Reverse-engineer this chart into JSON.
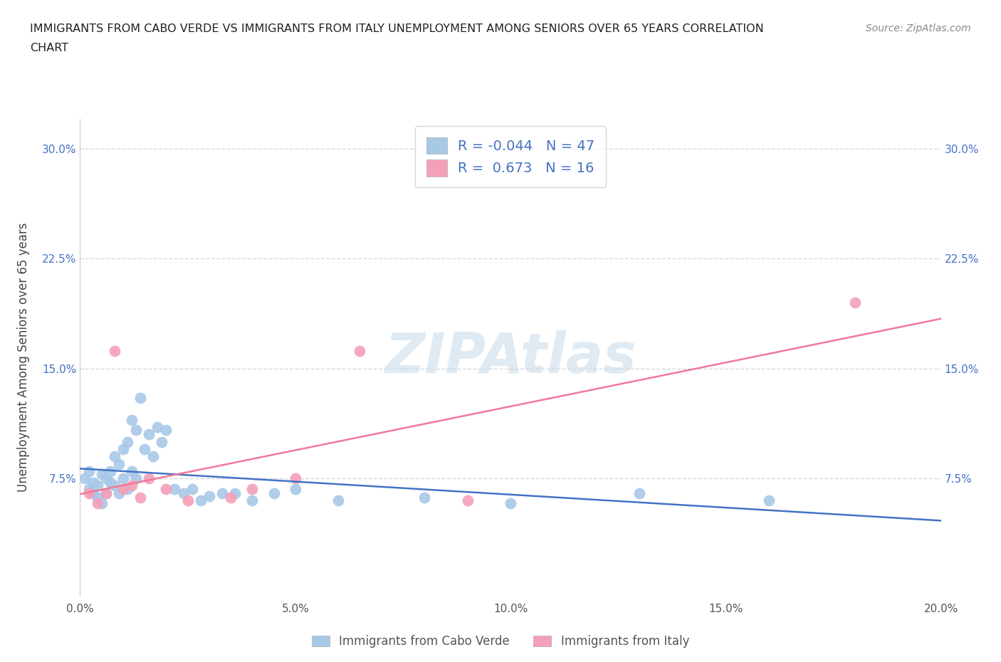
{
  "title_line1": "IMMIGRANTS FROM CABO VERDE VS IMMIGRANTS FROM ITALY UNEMPLOYMENT AMONG SENIORS OVER 65 YEARS CORRELATION",
  "title_line2": "CHART",
  "source": "Source: ZipAtlas.com",
  "ylabel": "Unemployment Among Seniors over 65 years",
  "xlim": [
    0.0,
    0.2
  ],
  "ylim": [
    -0.005,
    0.32
  ],
  "yticks": [
    0.075,
    0.15,
    0.225,
    0.3
  ],
  "xticks": [
    0.0,
    0.05,
    0.1,
    0.15,
    0.2
  ],
  "watermark": "ZIPAtlas",
  "cabo_verde_color": "#a8c8e8",
  "italy_color": "#f4a0b8",
  "cabo_verde_line_color": "#4472c4",
  "italy_line_color": "#f07898",
  "cabo_verde_R": -0.044,
  "cabo_verde_N": 47,
  "italy_R": 0.673,
  "italy_N": 16,
  "cabo_verde_x": [
    0.001,
    0.002,
    0.002,
    0.003,
    0.003,
    0.004,
    0.004,
    0.005,
    0.005,
    0.006,
    0.006,
    0.007,
    0.007,
    0.008,
    0.008,
    0.009,
    0.009,
    0.01,
    0.01,
    0.011,
    0.011,
    0.012,
    0.012,
    0.013,
    0.013,
    0.014,
    0.015,
    0.016,
    0.017,
    0.018,
    0.019,
    0.02,
    0.022,
    0.024,
    0.026,
    0.028,
    0.03,
    0.033,
    0.036,
    0.04,
    0.045,
    0.05,
    0.06,
    0.08,
    0.1,
    0.13,
    0.16
  ],
  "cabo_verde_y": [
    0.075,
    0.068,
    0.08,
    0.072,
    0.065,
    0.062,
    0.07,
    0.078,
    0.058,
    0.075,
    0.065,
    0.08,
    0.072,
    0.09,
    0.07,
    0.085,
    0.065,
    0.095,
    0.075,
    0.1,
    0.068,
    0.115,
    0.08,
    0.108,
    0.075,
    0.13,
    0.095,
    0.105,
    0.09,
    0.11,
    0.1,
    0.108,
    0.068,
    0.065,
    0.068,
    0.06,
    0.063,
    0.065,
    0.065,
    0.06,
    0.065,
    0.068,
    0.06,
    0.062,
    0.058,
    0.065,
    0.06
  ],
  "italy_x": [
    0.002,
    0.004,
    0.006,
    0.008,
    0.01,
    0.012,
    0.014,
    0.016,
    0.02,
    0.025,
    0.035,
    0.04,
    0.05,
    0.065,
    0.09,
    0.18
  ],
  "italy_y": [
    0.065,
    0.058,
    0.065,
    0.162,
    0.068,
    0.07,
    0.062,
    0.075,
    0.068,
    0.06,
    0.062,
    0.068,
    0.075,
    0.162,
    0.06,
    0.195
  ],
  "grid_color": "#d8d8d8",
  "background_color": "#ffffff",
  "legend_label_cabo": "Immigrants from Cabo Verde",
  "legend_label_italy": "Immigrants from Italy"
}
